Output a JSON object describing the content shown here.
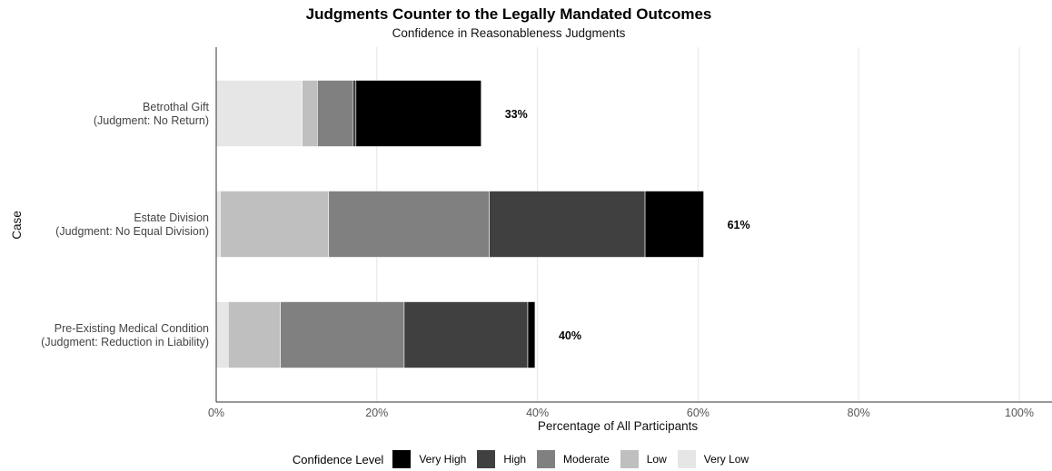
{
  "chart_data": {
    "type": "bar",
    "orientation": "horizontal",
    "stacked": true,
    "title": "Judgments Counter to the Legally Mandated Outcomes",
    "subtitle": "Confidence in Reasonableness Judgments",
    "xlabel": "Percentage of All Participants",
    "ylabel": "Case",
    "xlim": [
      0,
      100
    ],
    "xticks": [
      "0%",
      "20%",
      "40%",
      "60%",
      "80%",
      "100%"
    ],
    "grid": true,
    "legend_position": "bottom",
    "legend_title": "Confidence Level",
    "legend_order": [
      "Very High",
      "High",
      "Moderate",
      "Low",
      "Very Low"
    ],
    "categories": [
      {
        "line1": "Betrothal Gift",
        "line2": "(Judgment: No Return)"
      },
      {
        "line1": "Estate Division",
        "line2": "(Judgment: No Equal Division)"
      },
      {
        "line1": "Pre-Existing Medical Condition",
        "line2": "(Judgment: Reduction in Liability)"
      }
    ],
    "series": [
      {
        "name": "Very Low",
        "color": "#e6e6e6",
        "values": [
          10.7,
          0.5,
          1.5
        ]
      },
      {
        "name": "Low",
        "color": "#bfbfbf",
        "values": [
          1.9,
          13.5,
          6.5
        ]
      },
      {
        "name": "Moderate",
        "color": "#808080",
        "values": [
          4.4,
          20.0,
          15.4
        ]
      },
      {
        "name": "High",
        "color": "#404040",
        "values": [
          0.4,
          19.4,
          15.4
        ]
      },
      {
        "name": "Very High",
        "color": "#000000",
        "values": [
          15.6,
          7.3,
          0.9
        ]
      }
    ],
    "totals": [
      "33%",
      "61%",
      "40%"
    ]
  }
}
